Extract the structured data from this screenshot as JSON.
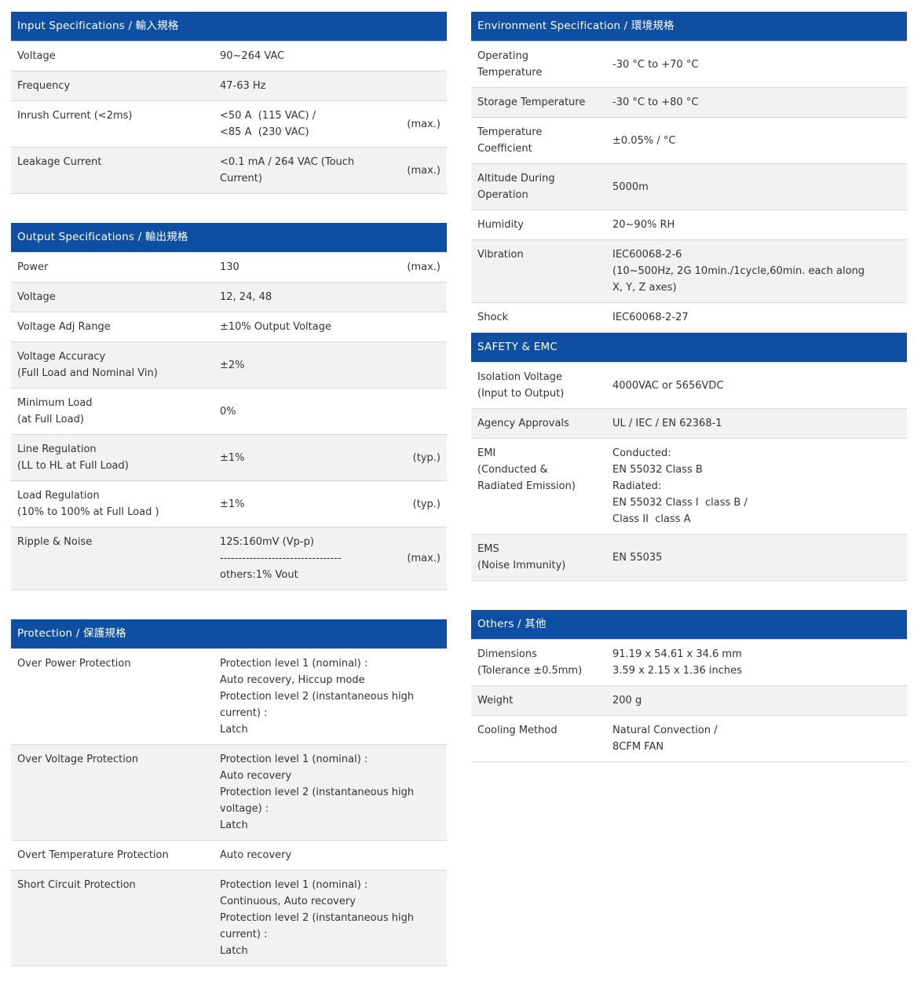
{
  "theme": {
    "header_bg": "#0e4fa4",
    "header_text": "#ffffff",
    "row_alt_bg": "#f2f2f2",
    "row_border": "#d8d8dc",
    "text": "#333333",
    "page_bg": "#ffffff"
  },
  "left_tables": [
    {
      "id": "input-specifications",
      "title": "Input Specifications / 輸入規格",
      "has_remark_column": true,
      "attached": false,
      "rows": [
        {
          "label": "Voltage",
          "value": "90~264 VAC",
          "remark": ""
        },
        {
          "label": "Frequency",
          "value": "47-63 Hz",
          "remark": ""
        },
        {
          "label": "Inrush Current (<2ms)",
          "value": "<50 A  (115 VAC) /\n<85 A  (230 VAC)",
          "remark": "(max.)"
        },
        {
          "label": "Leakage Current",
          "value": "<0.1 mA / 264 VAC (Touch\nCurrent)",
          "remark": "(max.)"
        }
      ]
    },
    {
      "id": "output-specifications",
      "title": "Output Specifications / 輸出規格",
      "has_remark_column": true,
      "attached": false,
      "rows": [
        {
          "label": "Power",
          "value": "130",
          "remark": "(max.)"
        },
        {
          "label": "Voltage",
          "value": "12, 24, 48",
          "remark": ""
        },
        {
          "label": "Voltage Adj Range",
          "value": "±10% Output Voltage",
          "remark": ""
        },
        {
          "label": "Voltage Accuracy\n(Full Load and Nominal Vin)",
          "value": "±2%",
          "remark": ""
        },
        {
          "label": "Minimum Load\n(at Full Load)",
          "value": "0%",
          "remark": ""
        },
        {
          "label": "Line Regulation\n(LL to HL at Full Load)",
          "value": "±1%",
          "remark": "(typ.)"
        },
        {
          "label": "Load Regulation\n(10% to 100% at Full Load )",
          "value": "±1%",
          "remark": "(typ.)"
        },
        {
          "label": "Ripple & Noise",
          "value": "12S:160mV (Vp-p)\n---------------------------------\nothers:1% Vout",
          "remark": "(max.)"
        }
      ]
    },
    {
      "id": "protection",
      "title": "Protection / 保護規格",
      "has_remark_column": false,
      "attached": false,
      "rows": [
        {
          "label": "Over Power Protection",
          "value": "Protection level 1 (nominal) :\nAuto recovery, Hiccup mode\nProtection level 2 (instantaneous high\ncurrent) :\nLatch"
        },
        {
          "label": "Over Voltage Protection",
          "value": "Protection level 1 (nominal) :\nAuto recovery\nProtection level 2 (instantaneous high\nvoltage) :\nLatch"
        },
        {
          "label": "Overt Temperature Protection",
          "value": "Auto recovery"
        },
        {
          "label": "Short Circuit Protection",
          "value": "Protection level 1 (nominal) :\nContinuous, Auto recovery\nProtection level 2 (instantaneous high\ncurrent) :\nLatch"
        }
      ]
    }
  ],
  "right_tables": [
    {
      "id": "environment-specification",
      "title": "Environment Specification / 環境規格",
      "has_remark_column": false,
      "attached": false,
      "rows": [
        {
          "label": "Operating\nTemperature",
          "value": "-30 °C to +70 °C"
        },
        {
          "label": "Storage Temperature",
          "value": "-30 °C to +80 °C"
        },
        {
          "label": "Temperature\nCoefficient",
          "value": "±0.05% / °C"
        },
        {
          "label": "Altitude During\nOperation",
          "value": "5000m"
        },
        {
          "label": "Humidity",
          "value": "20~90% RH"
        },
        {
          "label": "Vibration",
          "value": "IEC60068-2-6\n(10~500Hz, 2G 10min./1cycle,60min. each along\nX, Y, Z axes)"
        },
        {
          "label": "Shock",
          "value": "IEC60068-2-27"
        }
      ]
    },
    {
      "id": "safety-emc",
      "title": "SAFETY & EMC",
      "has_remark_column": false,
      "attached": true,
      "rows": [
        {
          "label": "Isolation Voltage\n(Input to Output)",
          "value": "4000VAC or 5656VDC"
        },
        {
          "label": "Agency Approvals",
          "value": "UL / IEC / EN 62368-1"
        },
        {
          "label": "EMI\n(Conducted &\nRadiated Emission)",
          "value": "Conducted:\nEN 55032 Class B\nRadiated:\nEN 55032 Class I  class B /\nClass II  class A"
        },
        {
          "label": "EMS\n(Noise Immunity)",
          "value": "EN 55035"
        }
      ]
    },
    {
      "id": "others",
      "title": "Others / 其他",
      "has_remark_column": false,
      "attached": false,
      "rows": [
        {
          "label": "Dimensions\n(Tolerance ±0.5mm)",
          "value": "91.19 x 54.61 x 34.6 mm\n3.59 x 2.15 x 1.36 inches"
        },
        {
          "label": "Weight",
          "value": "200 g"
        },
        {
          "label": "Cooling Method",
          "value": "Natural Convection /\n8CFM FAN"
        }
      ]
    }
  ]
}
